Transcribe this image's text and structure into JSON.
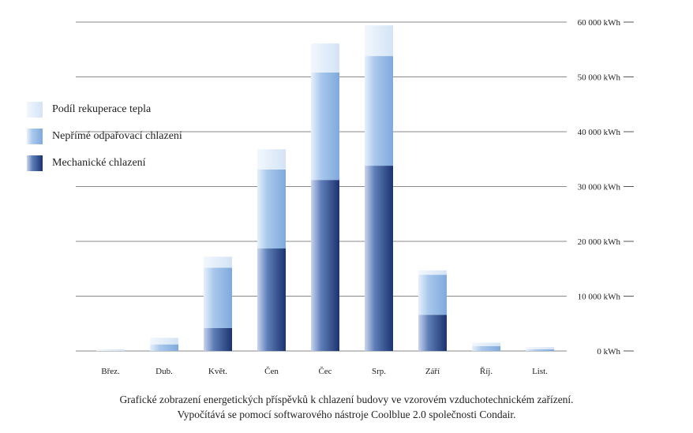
{
  "chart_data": {
    "type": "bar",
    "stacked": true,
    "categories": [
      "Břez.",
      "Dub.",
      "Květ.",
      "Čen",
      "Čec",
      "Srp.",
      "Září",
      "Říj.",
      "List."
    ],
    "series": [
      {
        "name": "Mechanické chlazení",
        "values": [
          0,
          0,
          4200,
          18700,
          31200,
          33800,
          6600,
          0,
          0
        ],
        "color": "#1f3c78"
      },
      {
        "name": "Nepřímé odpařovací chlazení",
        "values": [
          0,
          1200,
          11000,
          14400,
          19600,
          20000,
          7300,
          900,
          300
        ],
        "color": "#8fb6e3"
      },
      {
        "name": "Podíl rekuperace tepla",
        "values": [
          300,
          1200,
          2000,
          3700,
          5300,
          5600,
          800,
          600,
          400
        ],
        "color": "#dce9f7"
      }
    ],
    "y_ticks": [
      "0 kWh",
      "10 000 kWh",
      "20 000 kWh",
      "30 000 kWh",
      "40 000 kWh",
      "50 000 kWh",
      "60 000 kWh"
    ],
    "ylim": [
      0,
      60000
    ],
    "ytick_step": 10000,
    "grid": true,
    "y_axis_side": "right",
    "legend_position": "left",
    "caption": [
      "Grafické zobrazení energetických příspěvků k chlazení budovy ve vzorovém vzduchotechnickém zařízení.",
      "Vypočítává se pomocí softwarového nástroje Coolblue 2.0 společnosti Condair."
    ]
  }
}
